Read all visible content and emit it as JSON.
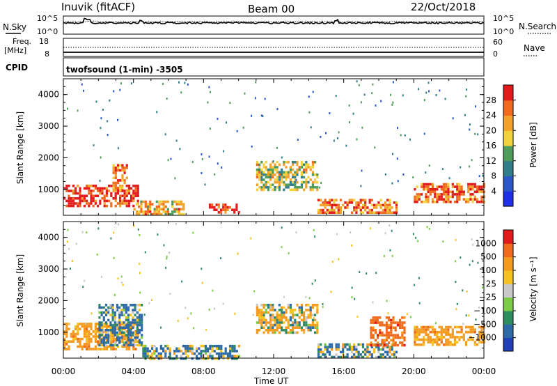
{
  "header": {
    "station": "Inuvik (fitACF)",
    "beam": "Beam 00",
    "date": "22/Oct/2018"
  },
  "top_panels": {
    "nsky": {
      "label": "N.Sky",
      "tick_top": "10^5",
      "tick_bottom": "10^0"
    },
    "nsearch": {
      "label": "N.Search",
      "tick_top": "10^5",
      "tick_bottom": "10^0"
    },
    "freq": {
      "label": "Freq.",
      "unit": "[MHz]",
      "tick_top": "18",
      "tick_bottom": "8"
    },
    "nave": {
      "label": "Nave",
      "tick_top": "60",
      "tick_bottom": "0"
    },
    "cpid": {
      "label": "CPID",
      "program": "twofsound (1-min) -3505"
    }
  },
  "power_colorbar": {
    "label": "Power [dB]",
    "ticks": [
      "4",
      "8",
      "12",
      "16",
      "20",
      "24",
      "28"
    ],
    "colors": [
      "#1f2fe8",
      "#2a58c9",
      "#317d8a",
      "#4f9b5a",
      "#f2d23a",
      "#f2a12b",
      "#f06a1e",
      "#e31a1c"
    ]
  },
  "velocity_colorbar": {
    "label": "Velocity [m s⁻¹]",
    "ticks": [
      "1000",
      "500",
      "100",
      "25",
      "−25",
      "−100",
      "−500",
      "−1000"
    ],
    "colors": [
      "#2140b8",
      "#2f6aa8",
      "#2f8c5e",
      "#7ccc47",
      "#c8c8c8",
      "#f6c21f",
      "#f39a1f",
      "#ef6b1b",
      "#e01a1a"
    ]
  },
  "chart_data": [
    {
      "type": "heatmap",
      "panel": "power",
      "ylabel": "Slant Range [km]",
      "yticks": [
        "1000",
        "2000",
        "3000",
        "4000"
      ],
      "ylim": [
        180,
        4500
      ],
      "x_range_hours": [
        0,
        24
      ],
      "zlim_dB": [
        0,
        30
      ],
      "features": [
        {
          "t_start_h": 0.0,
          "t_end_h": 4.3,
          "range_km": [
            500,
            1150
          ],
          "power_dB": 28
        },
        {
          "t_start_h": 2.8,
          "t_end_h": 3.6,
          "range_km": [
            1000,
            1800
          ],
          "power_dB": 22
        },
        {
          "t_start_h": 4.0,
          "t_end_h": 6.8,
          "range_km": [
            250,
            650
          ],
          "power_dB": 20
        },
        {
          "t_start_h": 8.3,
          "t_end_h": 10.0,
          "range_km": [
            250,
            550
          ],
          "power_dB": 28
        },
        {
          "t_start_h": 11.0,
          "t_end_h": 14.5,
          "range_km": [
            1000,
            1900
          ],
          "power_dB": 16
        },
        {
          "t_start_h": 14.5,
          "t_end_h": 19.0,
          "range_km": [
            300,
            700
          ],
          "power_dB": 24
        },
        {
          "t_start_h": 20.0,
          "t_end_h": 24.0,
          "range_km": [
            600,
            1200
          ],
          "power_dB": 24
        }
      ]
    },
    {
      "type": "heatmap",
      "panel": "velocity",
      "ylabel": "Slant Range [km]",
      "yticks": [
        "1000",
        "2000",
        "3000",
        "4000"
      ],
      "ylim": [
        180,
        4500
      ],
      "x_range_hours": [
        0,
        24
      ],
      "xticks": [
        "00:00",
        "04:00",
        "08:00",
        "12:00",
        "16:00",
        "20:00",
        "00:00"
      ],
      "xlabel": "Time UT",
      "zlim_ms": [
        -1000,
        1000
      ],
      "features": [
        {
          "t_start_h": 0.0,
          "t_end_h": 4.3,
          "range_km": [
            500,
            1300
          ],
          "velocity_ms": -300
        },
        {
          "t_start_h": 2.0,
          "t_end_h": 4.5,
          "range_km": [
            600,
            1900
          ],
          "velocity_ms": 150
        },
        {
          "t_start_h": 4.5,
          "t_end_h": 10.0,
          "range_km": [
            200,
            600
          ],
          "velocity_ms": 100
        },
        {
          "t_start_h": 11.0,
          "t_end_h": 14.5,
          "range_km": [
            1000,
            1900
          ],
          "velocity_ms": -100
        },
        {
          "t_start_h": 14.5,
          "t_end_h": 19.0,
          "range_km": [
            200,
            650
          ],
          "velocity_ms": 80
        },
        {
          "t_start_h": 17.5,
          "t_end_h": 19.5,
          "range_km": [
            600,
            1500
          ],
          "velocity_ms": -700
        },
        {
          "t_start_h": 20.0,
          "t_end_h": 24.0,
          "range_km": [
            600,
            1200
          ],
          "velocity_ms": -300
        }
      ]
    }
  ]
}
